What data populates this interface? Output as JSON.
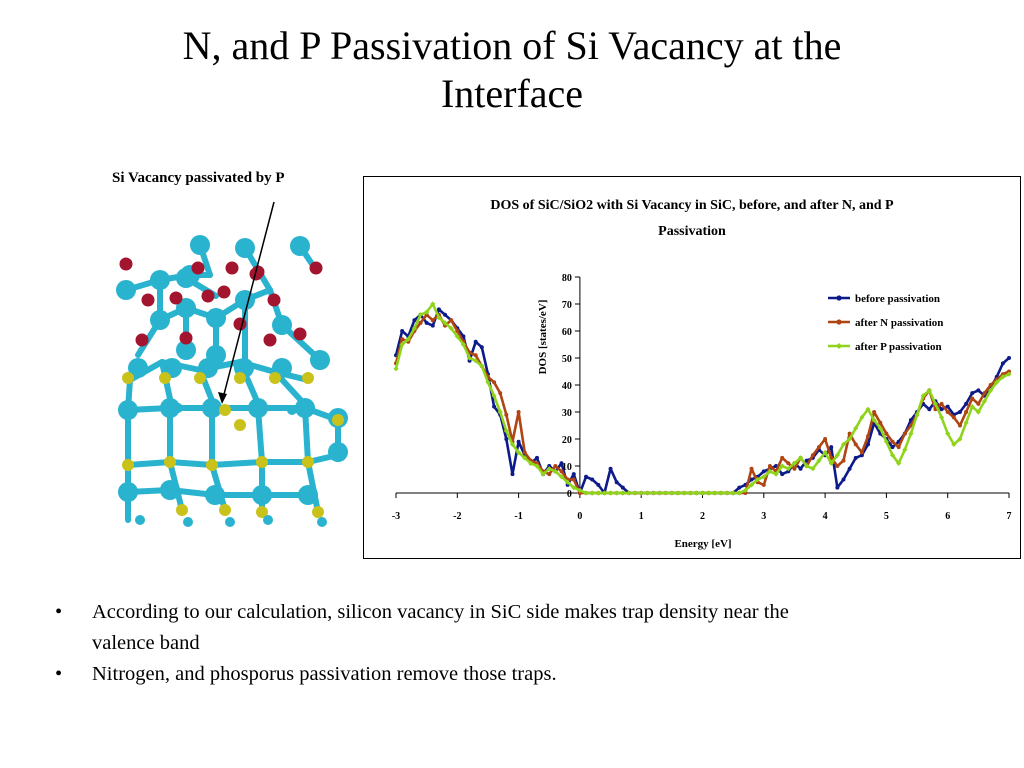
{
  "slide": {
    "title_line_1": "N, and P Passivation of Si Vacancy at the",
    "title_line_2": "Interface",
    "molecule_label": "Si Vacancy passivated by P",
    "bullets": [
      "According to our calculation, silicon vacancy in SiC side makes trap density near the valence band",
      "Nitrogen, and phosporus passivation remove those traps."
    ],
    "atom_colors": {
      "si": "#2ab3cf",
      "c": "#c8c21a",
      "o": "#a3142e"
    }
  },
  "chart_data": {
    "type": "line",
    "title": "DOS of SiC/SiO2 with Si Vacancy in SiC, before, and after N, and P Passivation",
    "title_line_1": "DOS of SiC/SiO2 with Si Vacancy in SiC, before, and after N, and P",
    "title_line_2": "Passivation",
    "xlabel": "Energy [eV]",
    "ylabel": "DOS [states/eV]",
    "xlim": [
      -3,
      7
    ],
    "ylim": [
      0,
      80
    ],
    "x_ticks": [
      -3,
      -2,
      -1,
      0,
      1,
      2,
      3,
      4,
      5,
      6,
      7
    ],
    "y_ticks": [
      0,
      10,
      20,
      30,
      40,
      50,
      60,
      70,
      80
    ],
    "grid": false,
    "legend": "top-right",
    "x": [
      -3,
      -2.9,
      -2.8,
      -2.7,
      -2.6,
      -2.5,
      -2.4,
      -2.3,
      -2.2,
      -2.1,
      -2.0,
      -1.9,
      -1.8,
      -1.7,
      -1.6,
      -1.5,
      -1.4,
      -1.3,
      -1.2,
      -1.1,
      -1.0,
      -0.9,
      -0.8,
      -0.7,
      -0.6,
      -0.5,
      -0.4,
      -0.3,
      -0.2,
      -0.1,
      0.0,
      0.1,
      0.2,
      0.3,
      0.4,
      0.5,
      0.6,
      0.7,
      0.8,
      0.9,
      1.0,
      1.1,
      1.2,
      1.3,
      1.4,
      1.5,
      1.6,
      1.7,
      1.8,
      1.9,
      2.0,
      2.1,
      2.2,
      2.3,
      2.4,
      2.5,
      2.6,
      2.7,
      2.8,
      2.9,
      3.0,
      3.1,
      3.2,
      3.3,
      3.4,
      3.5,
      3.6,
      3.7,
      3.8,
      3.9,
      4.0,
      4.1,
      4.2,
      4.3,
      4.4,
      4.5,
      4.6,
      4.7,
      4.8,
      4.9,
      5.0,
      5.1,
      5.2,
      5.3,
      5.4,
      5.5,
      5.6,
      5.7,
      5.8,
      5.9,
      6.0,
      6.1,
      6.2,
      6.3,
      6.4,
      6.5,
      6.6,
      6.7,
      6.8,
      6.9,
      7.0
    ],
    "series": [
      {
        "name": "before passivation",
        "color": "#0d1b8a",
        "marker": "circle",
        "values": [
          51,
          60,
          58,
          64,
          66,
          63,
          62,
          68,
          66,
          64,
          61,
          58,
          49,
          56,
          54,
          44,
          32,
          29,
          20,
          7,
          19,
          14,
          11,
          13,
          7,
          10,
          8,
          11,
          3,
          7,
          0,
          6,
          5,
          3,
          0,
          9,
          4,
          2,
          0,
          0,
          0,
          0,
          0,
          0,
          0,
          0,
          0,
          0,
          0,
          0,
          0,
          0,
          0,
          0,
          0,
          0,
          2,
          3,
          5,
          6,
          8,
          9,
          10,
          7,
          8,
          11,
          9,
          12,
          13,
          16,
          14,
          17,
          2,
          5,
          9,
          13,
          14,
          18,
          26,
          22,
          20,
          17,
          19,
          22,
          27,
          30,
          33,
          31,
          34,
          31,
          32,
          29,
          30,
          33,
          37,
          38,
          36,
          39,
          43,
          48,
          50
        ]
      },
      {
        "name": "after N passivation",
        "color": "#b04513",
        "marker": "circle",
        "values": [
          48,
          57,
          56,
          60,
          63,
          66,
          64,
          66,
          62,
          64,
          60,
          56,
          52,
          51,
          47,
          43,
          41,
          37,
          29,
          19,
          30,
          15,
          12,
          11,
          8,
          7,
          10,
          8,
          5,
          5,
          0,
          0,
          0,
          0,
          0,
          0,
          0,
          0,
          0,
          0,
          0,
          0,
          0,
          0,
          0,
          0,
          0,
          0,
          0,
          0,
          0,
          0,
          0,
          0,
          0,
          0,
          0,
          0,
          9,
          4,
          3,
          10,
          8,
          13,
          11,
          9,
          13,
          10,
          14,
          17,
          20,
          13,
          10,
          12,
          22,
          18,
          15,
          21,
          30,
          26,
          22,
          19,
          17,
          22,
          25,
          29,
          35,
          38,
          31,
          33,
          30,
          28,
          25,
          30,
          35,
          33,
          37,
          40,
          42,
          44,
          45
        ]
      },
      {
        "name": "after P passivation",
        "color": "#8fd41a",
        "marker": "diamond",
        "values": [
          46,
          55,
          57,
          61,
          66,
          67,
          70,
          65,
          63,
          61,
          58,
          55,
          50,
          49,
          47,
          41,
          36,
          30,
          23,
          18,
          15,
          13,
          11,
          10,
          7,
          9,
          8,
          6,
          4,
          2,
          1,
          0,
          0,
          0,
          0,
          0,
          0,
          0,
          0,
          0,
          0,
          0,
          0,
          0,
          0,
          0,
          0,
          0,
          0,
          0,
          0,
          0,
          0,
          0,
          0,
          0,
          0,
          1,
          3,
          5,
          6,
          8,
          7,
          10,
          9,
          11,
          13,
          10,
          9,
          12,
          15,
          11,
          14,
          18,
          20,
          24,
          28,
          31,
          27,
          24,
          19,
          14,
          11,
          16,
          22,
          29,
          36,
          38,
          33,
          28,
          22,
          18,
          20,
          26,
          32,
          30,
          34,
          38,
          41,
          43,
          44
        ]
      }
    ]
  }
}
